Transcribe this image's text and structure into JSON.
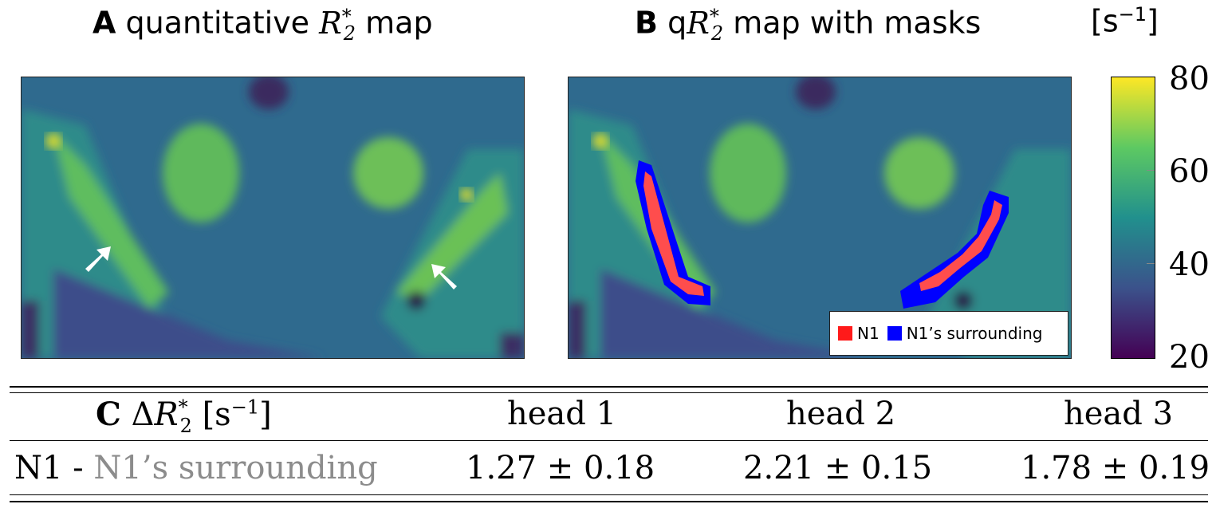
{
  "panel_a": {
    "letter": "A",
    "title_pre": "quantitative",
    "symbol": "R",
    "sub": "2",
    "sup": "*",
    "title_post": "map"
  },
  "panel_b": {
    "letter": "B",
    "prefix": "q",
    "symbol": "R",
    "sub": "2",
    "sup": "*",
    "title_post": "map with masks"
  },
  "colorbar": {
    "unit_base": "[s",
    "unit_exp": "−1",
    "unit_close": "]",
    "ticks": [
      "80",
      "60",
      "40",
      "20"
    ],
    "min": 20,
    "max": 80
  },
  "legend": {
    "items": [
      {
        "label": "N1",
        "color": "#ff1a1a"
      },
      {
        "label": "N1’s surrounding",
        "color": "#0000ff"
      }
    ]
  },
  "table": {
    "header": {
      "letter": "C",
      "delta": "Δ",
      "symbol": "R",
      "sub": "2",
      "sup": "*",
      "unit": "[s",
      "unit_exp": "−1",
      "unit_close": "]"
    },
    "columns": [
      "head 1",
      "head 2",
      "head 3"
    ],
    "row": {
      "label_main": "N1 -",
      "label_grey": "N1’s surrounding",
      "values": [
        "1.27 ± 0.18",
        "2.21 ± 0.15",
        "1.78 ± 0.19"
      ]
    }
  }
}
